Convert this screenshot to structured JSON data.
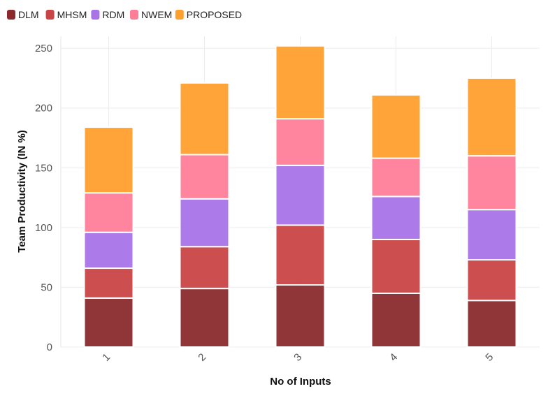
{
  "chart_data": {
    "type": "bar",
    "stacked": true,
    "categories": [
      "1",
      "2",
      "3",
      "4",
      "5"
    ],
    "series": [
      {
        "name": "DLM",
        "color": "#8b2b2d",
        "values": [
          41,
          49,
          52,
          45,
          39
        ]
      },
      {
        "name": "MHSM",
        "color": "#c94446",
        "values": [
          25,
          35,
          50,
          45,
          34
        ]
      },
      {
        "name": "RDM",
        "color": "#a874e8",
        "values": [
          30,
          40,
          50,
          36,
          42
        ]
      },
      {
        "name": "NWEM",
        "color": "#fe7e98",
        "values": [
          33,
          37,
          39,
          32,
          45
        ]
      },
      {
        "name": "PROPOSED",
        "color": "#ff9f2e",
        "values": [
          55,
          60,
          61,
          53,
          65
        ]
      }
    ],
    "xlabel": "No of Inputs",
    "ylabel": "Team Productivity (IN %)",
    "ylim": [
      0,
      260
    ],
    "yticks": [
      0,
      50,
      100,
      150,
      200,
      250
    ],
    "grid": true,
    "legend_position": "top-left"
  }
}
